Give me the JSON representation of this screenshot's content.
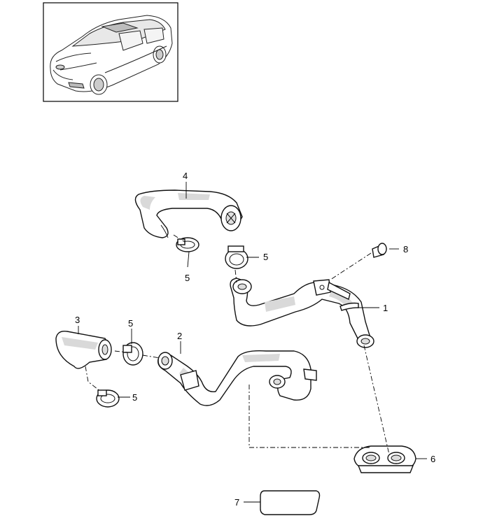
{
  "diagram": {
    "callouts": [
      {
        "id": "c1",
        "label": "1"
      },
      {
        "id": "c2",
        "label": "2"
      },
      {
        "id": "c3",
        "label": "3"
      },
      {
        "id": "c4",
        "label": "4"
      },
      {
        "id": "c5a",
        "label": "5"
      },
      {
        "id": "c5b",
        "label": "5"
      },
      {
        "id": "c5c",
        "label": "5"
      },
      {
        "id": "c5d",
        "label": "5"
      },
      {
        "id": "c6",
        "label": "6"
      },
      {
        "id": "c7",
        "label": "7"
      },
      {
        "id": "c8",
        "label": "8"
      }
    ]
  }
}
